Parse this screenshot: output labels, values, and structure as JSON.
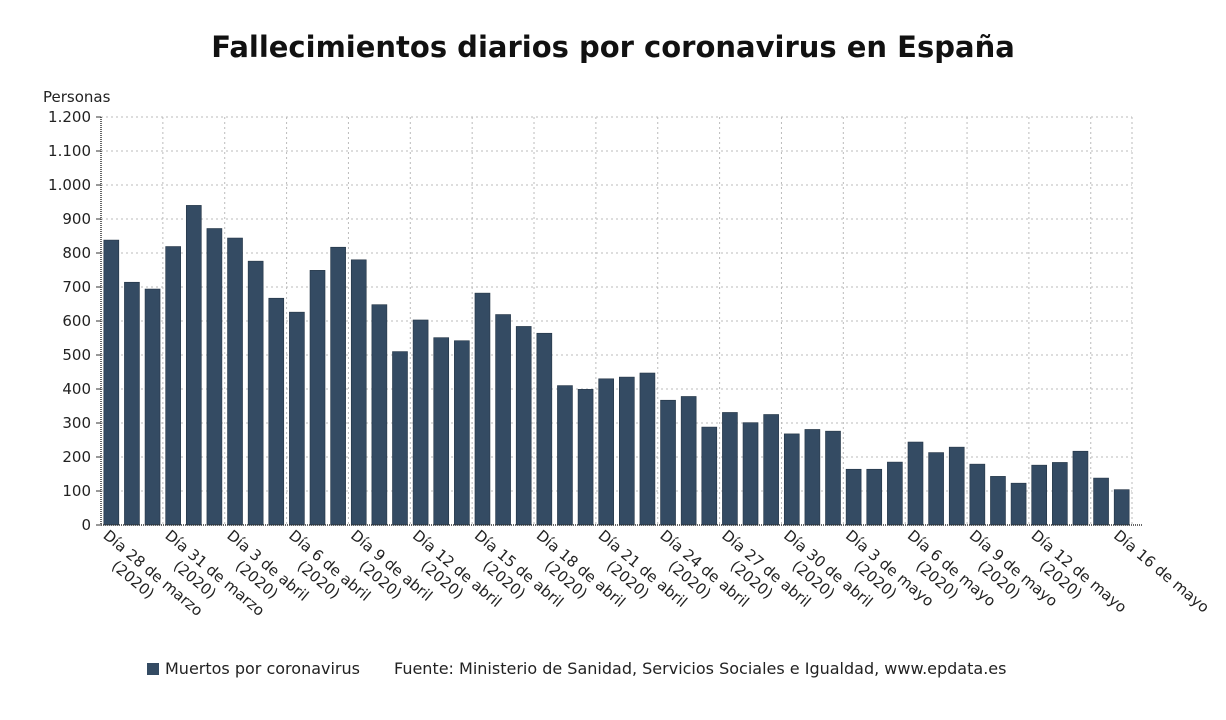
{
  "chart_data": {
    "type": "bar",
    "title": "Fallecimientos diarios por coronavirus en España",
    "ylabel": "Personas",
    "xlabel": "",
    "ylim": [
      0,
      1200
    ],
    "yticks": [
      0,
      100,
      200,
      300,
      400,
      500,
      600,
      700,
      800,
      900,
      1000,
      1100,
      1200
    ],
    "ytick_labels": [
      "0",
      "100",
      "200",
      "300",
      "400",
      "500",
      "600",
      "700",
      "800",
      "900",
      "1.000",
      "1.100",
      "1.200"
    ],
    "grid": true,
    "bar_color": "#344b63",
    "x_labels": [
      {
        "index": 0,
        "line1": "Día 28 de marzo",
        "line2": "(2020)"
      },
      {
        "index": 3,
        "line1": "Día 31 de marzo",
        "line2": "(2020)"
      },
      {
        "index": 6,
        "line1": "Día 3 de abril",
        "line2": "(2020)"
      },
      {
        "index": 9,
        "line1": "Día 6 de abril",
        "line2": "(2020)"
      },
      {
        "index": 12,
        "line1": "Día 9 de abril",
        "line2": "(2020)"
      },
      {
        "index": 15,
        "line1": "Día 12 de abril",
        "line2": "(2020)"
      },
      {
        "index": 18,
        "line1": "Día 15 de abril",
        "line2": "(2020)"
      },
      {
        "index": 21,
        "line1": "Día 18 de abril",
        "line2": "(2020)"
      },
      {
        "index": 24,
        "line1": "Día 21 de abril",
        "line2": "(2020)"
      },
      {
        "index": 27,
        "line1": "Día 24 de abril",
        "line2": "(2020)"
      },
      {
        "index": 30,
        "line1": "Día 27 de abril",
        "line2": "(2020)"
      },
      {
        "index": 33,
        "line1": "Día 30 de abril",
        "line2": "(2020)"
      },
      {
        "index": 36,
        "line1": "Día 3 de mayo",
        "line2": "(2020)"
      },
      {
        "index": 39,
        "line1": "Día 6 de mayo",
        "line2": "(2020)"
      },
      {
        "index": 42,
        "line1": "Día 9 de mayo",
        "line2": "(2020)"
      },
      {
        "index": 45,
        "line1": "Día 12 de mayo",
        "line2": "(2020)"
      },
      {
        "index": 49,
        "line1": "Día 16 de mayo",
        "line2": ""
      }
    ],
    "series": [
      {
        "name": "Muertos por coronavirus",
        "values": [
          838,
          714,
          694,
          819,
          940,
          872,
          844,
          776,
          667,
          626,
          749,
          817,
          780,
          648,
          510,
          603,
          551,
          542,
          682,
          619,
          584,
          564,
          410,
          399,
          430,
          435,
          447,
          367,
          378,
          288,
          331,
          301,
          325,
          268,
          281,
          276,
          164,
          164,
          185,
          244,
          213,
          229,
          179,
          143,
          123,
          176,
          184,
          217,
          138,
          104
        ]
      }
    ],
    "legend_position": "bottom-left",
    "source": "Fuente: Ministerio de Sanidad, Servicios Sociales e Igualdad, www.epdata.es"
  }
}
